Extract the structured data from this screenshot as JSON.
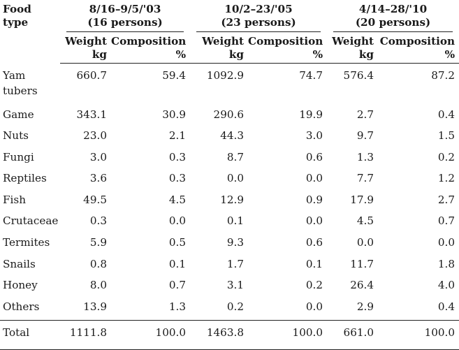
{
  "table": {
    "food_type_header": "Food\ntype",
    "periods": [
      {
        "dates": "8/16–9/5/'03",
        "persons": "(16 persons)"
      },
      {
        "dates": "10/2–23/'05",
        "persons": "(23 persons)"
      },
      {
        "dates": "4/14–28/'10",
        "persons": "(20 persons)"
      }
    ],
    "weight_label": "Weight",
    "weight_unit": "kg",
    "composition_label": "Composition",
    "composition_unit": "%",
    "rows": [
      {
        "name": "Yam tubers",
        "values": [
          "660.7",
          "59.4",
          "1092.9",
          "74.7",
          "576.4",
          "87.2"
        ]
      },
      {
        "name": "Game",
        "values": [
          "343.1",
          "30.9",
          "290.6",
          "19.9",
          "2.7",
          "0.4"
        ]
      },
      {
        "name": "Nuts",
        "values": [
          "23.0",
          "2.1",
          "44.3",
          "3.0",
          "9.7",
          "1.5"
        ]
      },
      {
        "name": "Fungi",
        "values": [
          "3.0",
          "0.3",
          "8.7",
          "0.6",
          "1.3",
          "0.2"
        ]
      },
      {
        "name": "Reptiles",
        "values": [
          "3.6",
          "0.3",
          "0.0",
          "0.0",
          "7.7",
          "1.2"
        ]
      },
      {
        "name": "Fish",
        "values": [
          "49.5",
          "4.5",
          "12.9",
          "0.9",
          "17.9",
          "2.7"
        ]
      },
      {
        "name": "Crutaceae",
        "values": [
          "0.3",
          "0.0",
          "0.1",
          "0.0",
          "4.5",
          "0.7"
        ]
      },
      {
        "name": "Termites",
        "values": [
          "5.9",
          "0.5",
          "9.3",
          "0.6",
          "0.0",
          "0.0"
        ]
      },
      {
        "name": "Snails",
        "values": [
          "0.8",
          "0.1",
          "1.7",
          "0.1",
          "11.7",
          "1.8"
        ]
      },
      {
        "name": "Honey",
        "values": [
          "8.0",
          "0.7",
          "3.1",
          "0.2",
          "26.4",
          "4.0"
        ]
      },
      {
        "name": "Others",
        "values": [
          "13.9",
          "1.3",
          "0.2",
          "0.0",
          "2.9",
          "0.4"
        ]
      }
    ],
    "total": {
      "name": "Total",
      "values": [
        "1111.8",
        "100.0",
        "1463.8",
        "100.0",
        "661.0",
        "100.0"
      ]
    }
  }
}
